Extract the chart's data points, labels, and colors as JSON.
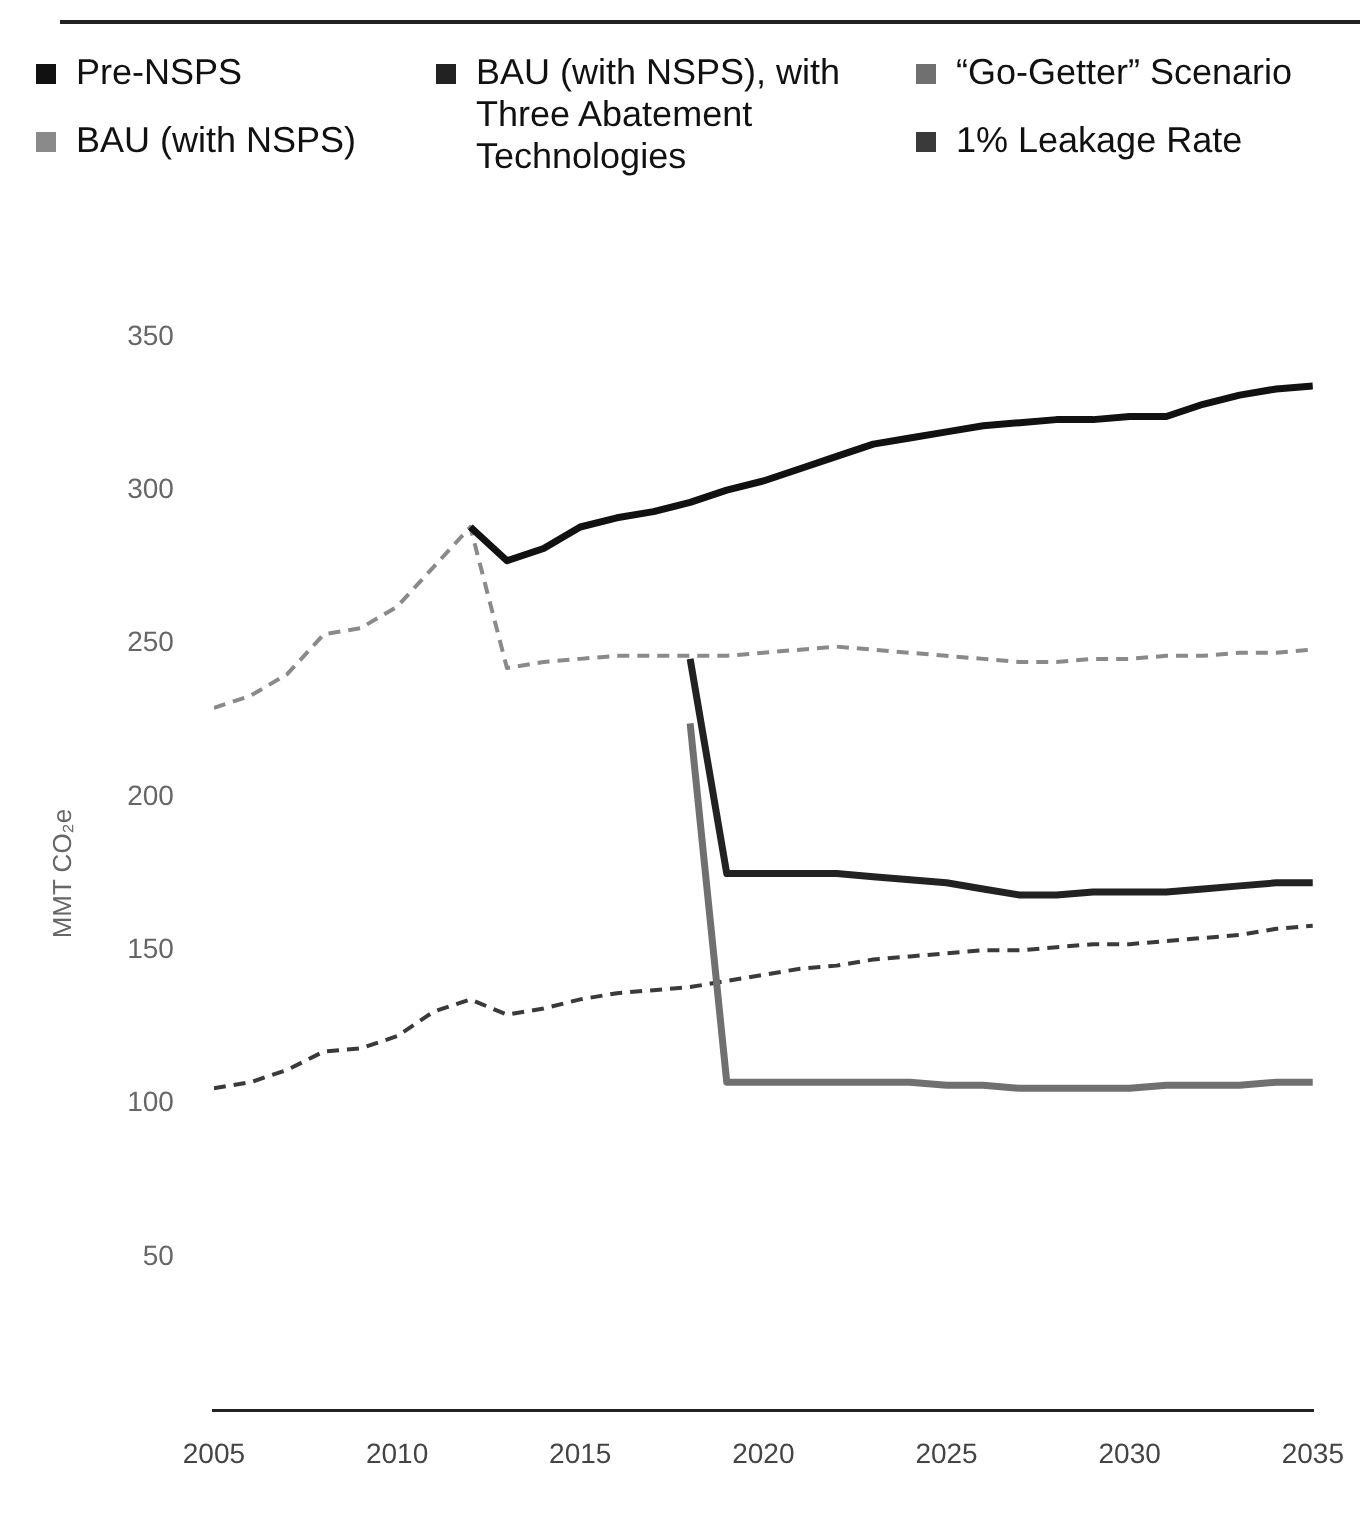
{
  "chart_data": {
    "type": "line",
    "ylabel": "MMT CO₂e",
    "legend": "top",
    "grid": false,
    "marker": "none",
    "xlim": [
      2005,
      2035
    ],
    "xticks": [
      2005,
      2010,
      2015,
      2020,
      2025,
      2030,
      2035
    ],
    "ylim": [
      0,
      350
    ],
    "yticks": [
      50,
      100,
      150,
      200,
      250,
      300,
      350
    ],
    "series": [
      {
        "name": "Pre-NSPS",
        "color": "#111111",
        "line_style": "solid",
        "x": [
          2012,
          2013,
          2014,
          2015,
          2016,
          2017,
          2018,
          2019,
          2020,
          2021,
          2022,
          2023,
          2024,
          2025,
          2026,
          2027,
          2028,
          2029,
          2030,
          2031,
          2032,
          2033,
          2034,
          2035
        ],
        "values": [
          288,
          277,
          281,
          288,
          291,
          293,
          296,
          300,
          303,
          307,
          311,
          315,
          317,
          319,
          321,
          322,
          323,
          323,
          324,
          324,
          328,
          331,
          333,
          334
        ]
      },
      {
        "name": "BAU (with NSPS)",
        "color": "#8a8a8a",
        "line_style": "dashed",
        "x": [
          2005,
          2006,
          2007,
          2008,
          2009,
          2010,
          2011,
          2012,
          2013,
          2014,
          2015,
          2016,
          2017,
          2018,
          2019,
          2020,
          2021,
          2022,
          2023,
          2024,
          2025,
          2026,
          2027,
          2028,
          2029,
          2030,
          2031,
          2032,
          2033,
          2034,
          2035
        ],
        "values": [
          229,
          233,
          240,
          253,
          255,
          262,
          275,
          288,
          242,
          244,
          245,
          246,
          246,
          246,
          246,
          247,
          248,
          249,
          248,
          247,
          246,
          245,
          244,
          244,
          245,
          245,
          246,
          246,
          247,
          247,
          248
        ]
      },
      {
        "name": "BAU (with NSPS), with Three Abatement Technologies",
        "color": "#222222",
        "line_style": "solid",
        "x": [
          2018,
          2019,
          2020,
          2021,
          2022,
          2023,
          2024,
          2025,
          2026,
          2027,
          2028,
          2029,
          2030,
          2031,
          2032,
          2033,
          2034,
          2035
        ],
        "values": [
          245,
          175,
          175,
          175,
          175,
          174,
          173,
          172,
          170,
          168,
          168,
          169,
          169,
          169,
          170,
          171,
          172,
          172
        ]
      },
      {
        "name": "“Go-Getter” Scenario",
        "color": "#707070",
        "line_style": "solid",
        "x": [
          2018,
          2019,
          2020,
          2021,
          2022,
          2023,
          2024,
          2025,
          2026,
          2027,
          2028,
          2029,
          2030,
          2031,
          2032,
          2033,
          2034,
          2035
        ],
        "values": [
          224,
          107,
          107,
          107,
          107,
          107,
          107,
          106,
          106,
          105,
          105,
          105,
          105,
          106,
          106,
          106,
          107,
          107
        ]
      },
      {
        "name": "1% Leakage Rate",
        "color": "#3a3a3a",
        "line_style": "dashed",
        "x": [
          2005,
          2006,
          2007,
          2008,
          2009,
          2010,
          2011,
          2012,
          2013,
          2014,
          2015,
          2016,
          2017,
          2018,
          2019,
          2020,
          2021,
          2022,
          2023,
          2024,
          2025,
          2026,
          2027,
          2028,
          2029,
          2030,
          2031,
          2032,
          2033,
          2034,
          2035
        ],
        "values": [
          105,
          107,
          111,
          117,
          118,
          122,
          130,
          134,
          129,
          131,
          134,
          136,
          137,
          138,
          140,
          142,
          144,
          145,
          147,
          148,
          149,
          150,
          150,
          151,
          152,
          152,
          153,
          154,
          155,
          157,
          158
        ]
      }
    ]
  }
}
